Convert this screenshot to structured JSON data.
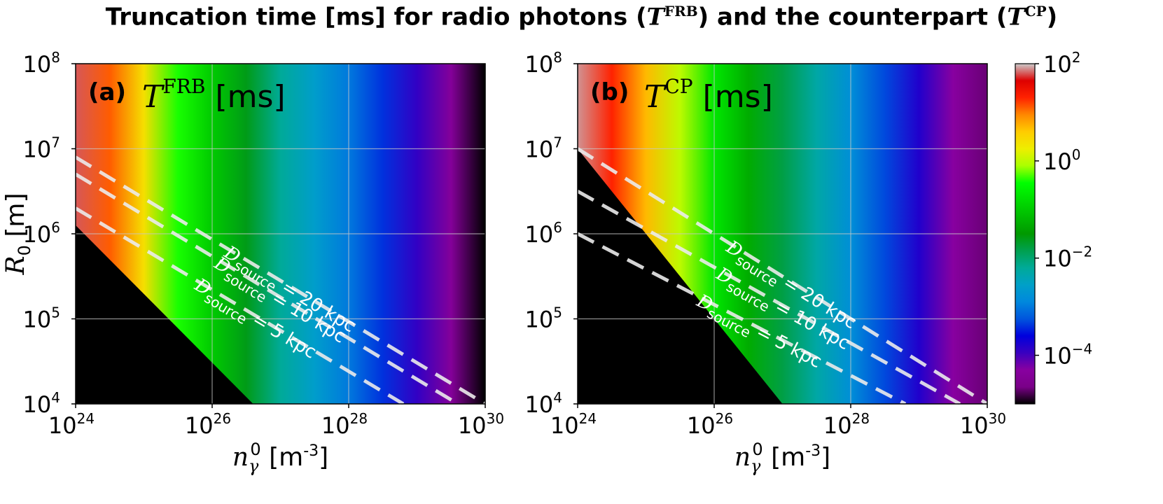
{
  "title": {
    "prefix": "Truncation time [ms] for radio photons (",
    "sym1": "T",
    "sup1": "FRB",
    "middle": ") and the counterpart (",
    "sym2": "T",
    "sup2": "CP",
    "suffix": ")"
  },
  "chart_data": [
    {
      "type": "heatmap",
      "panel": "(a)",
      "quantity": {
        "symbol": "T",
        "superscript": "FRB",
        "unit": "[ms]"
      },
      "xlabel": {
        "symbol": "n",
        "sub": "γ",
        "sup": "0",
        "unit": "[m",
        "unit_exp": "-3",
        "unit_close": "]"
      },
      "ylabel": {
        "symbol": "R",
        "sub": "0",
        "unit": "[m]"
      },
      "x_scale": "log",
      "y_scale": "log",
      "xlim": [
        1e+24,
        1e+30
      ],
      "ylim": [
        10000.0,
        100000000.0
      ],
      "x_ticks": [
        {
          "base": "10",
          "exp": "24",
          "v": 24
        },
        {
          "base": "10",
          "exp": "26",
          "v": 26
        },
        {
          "base": "10",
          "exp": "28",
          "v": 28
        },
        {
          "base": "10",
          "exp": "30",
          "v": 30
        }
      ],
      "y_ticks": [
        {
          "base": "10",
          "exp": "4",
          "v": 4
        },
        {
          "base": "10",
          "exp": "5",
          "v": 5
        },
        {
          "base": "10",
          "exp": "6",
          "v": 6
        },
        {
          "base": "10",
          "exp": "7",
          "v": 7
        },
        {
          "base": "10",
          "exp": "8",
          "v": 8
        }
      ],
      "grid": true,
      "black_boundary": [
        [
          24,
          6.1
        ],
        [
          26.6,
          4
        ]
      ],
      "time_profile": [
        [
          24,
          1.8
        ],
        [
          24.5,
          1.1
        ],
        [
          25,
          0.4
        ],
        [
          25.5,
          -0.4
        ],
        [
          26,
          -1.0
        ],
        [
          26.5,
          -1.6
        ],
        [
          27,
          -2.2
        ],
        [
          27.5,
          -2.6
        ],
        [
          28,
          -3.0
        ],
        [
          28.5,
          -3.4
        ],
        [
          29,
          -3.9
        ],
        [
          29.5,
          -4.4
        ],
        [
          30,
          -5.0
        ]
      ],
      "contours": [
        {
          "label_parts": [
            "D",
            "source",
            " = 20 kpc"
          ],
          "line": [
            [
              24,
              6.9
            ],
            [
              30,
              4.0
            ]
          ]
        },
        {
          "label_parts": [
            "D",
            "source",
            " = 10 kpc"
          ],
          "line": [
            [
              24,
              6.7
            ],
            [
              29.6,
              4.0
            ]
          ]
        },
        {
          "label_parts": [
            "D",
            "source",
            " = 5 kpc"
          ],
          "line": [
            [
              24,
              6.3
            ],
            [
              28.8,
              4.0
            ]
          ]
        }
      ]
    },
    {
      "type": "heatmap",
      "panel": "(b)",
      "quantity": {
        "symbol": "T",
        "superscript": "CP",
        "unit": "[ms]"
      },
      "xlabel": {
        "symbol": "n",
        "sub": "γ",
        "sup": "0",
        "unit": "[m",
        "unit_exp": "-3",
        "unit_close": "]"
      },
      "ylabel": null,
      "x_scale": "log",
      "y_scale": "log",
      "xlim": [
        1e+24,
        1e+30
      ],
      "ylim": [
        10000.0,
        100000000.0
      ],
      "x_ticks": [
        {
          "base": "10",
          "exp": "24",
          "v": 24
        },
        {
          "base": "10",
          "exp": "26",
          "v": 26
        },
        {
          "base": "10",
          "exp": "28",
          "v": 28
        },
        {
          "base": "10",
          "exp": "30",
          "v": 30
        }
      ],
      "y_ticks": [
        {
          "base": "10",
          "exp": "4",
          "v": 4
        },
        {
          "base": "10",
          "exp": "5",
          "v": 5
        },
        {
          "base": "10",
          "exp": "6",
          "v": 6
        },
        {
          "base": "10",
          "exp": "7",
          "v": 7
        },
        {
          "base": "10",
          "exp": "8",
          "v": 8
        }
      ],
      "grid": true,
      "black_boundary": [
        [
          24,
          7.0
        ],
        [
          27.0,
          4
        ]
      ],
      "time_profile": [
        [
          24,
          1.9
        ],
        [
          24.5,
          1.3
        ],
        [
          25,
          0.7
        ],
        [
          25.5,
          0.0
        ],
        [
          26,
          -0.7
        ],
        [
          26.5,
          -1.3
        ],
        [
          27,
          -1.8
        ],
        [
          27.5,
          -2.3
        ],
        [
          28,
          -2.8
        ],
        [
          28.5,
          -3.3
        ],
        [
          29,
          -3.8
        ],
        [
          29.5,
          -4.3
        ],
        [
          30,
          -4.7
        ]
      ],
      "contours": [
        {
          "label_parts": [
            "D",
            "source",
            " = 20 kpc"
          ],
          "line": [
            [
              24,
              7.0
            ],
            [
              30,
              4.0
            ]
          ]
        },
        {
          "label_parts": [
            "D",
            "source",
            " = 10 kpc"
          ],
          "line": [
            [
              24,
              6.5
            ],
            [
              29.6,
              4.0
            ]
          ]
        },
        {
          "label_parts": [
            "D",
            "source",
            " = 5 kpc"
          ],
          "line": [
            [
              24,
              6.0
            ],
            [
              28.8,
              4.0
            ]
          ]
        }
      ]
    }
  ],
  "colorbar": {
    "scale": "log",
    "range": [
      1e-05,
      100.0
    ],
    "ticks": [
      {
        "base": "10",
        "exp": "2",
        "v": 2
      },
      {
        "base": "10",
        "exp": "0",
        "v": 0
      },
      {
        "base": "10",
        "exp": "−2",
        "v": -2
      },
      {
        "base": "10",
        "exp": "−4",
        "v": -4
      }
    ],
    "colormap": "nipy_spectral"
  }
}
